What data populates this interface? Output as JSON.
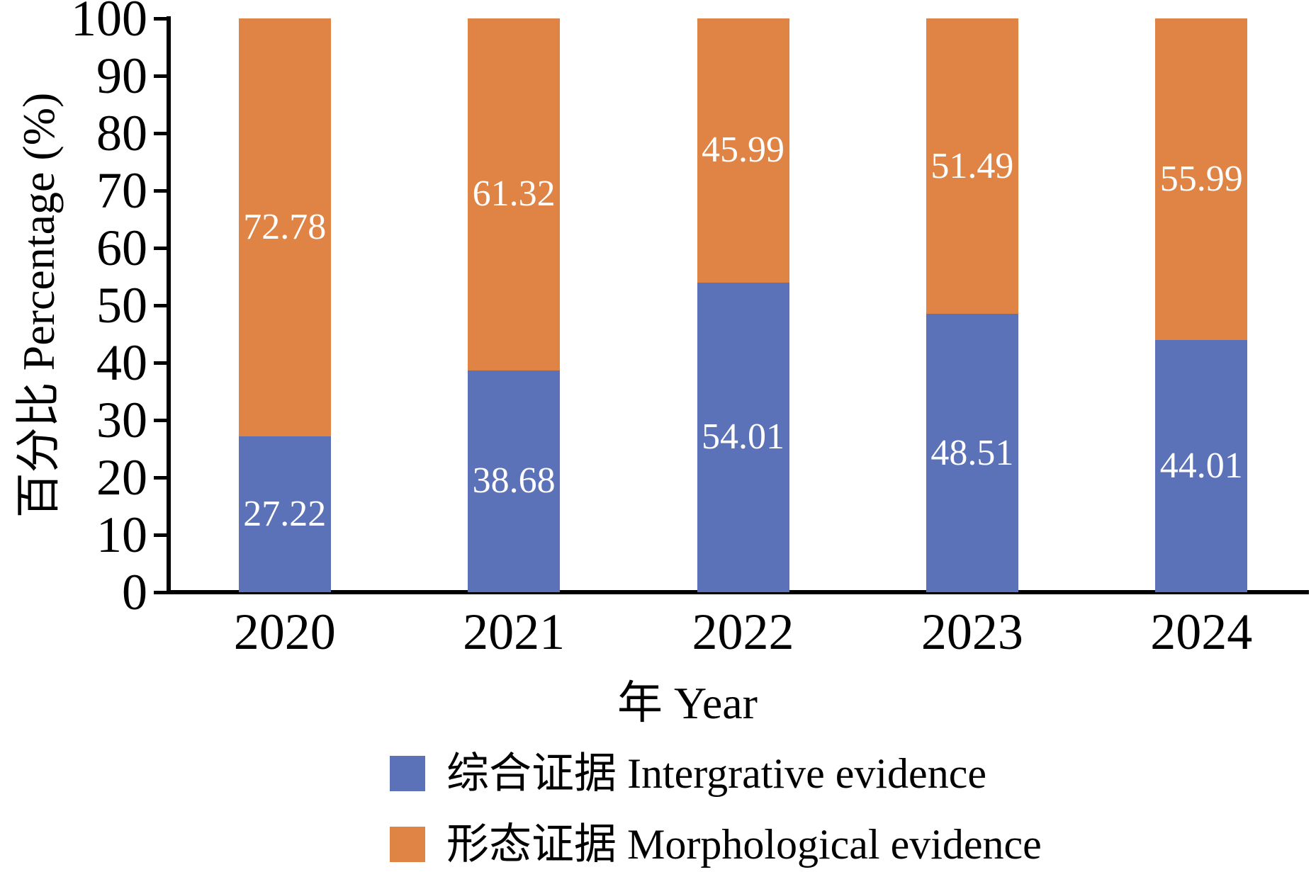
{
  "chart_data": {
    "type": "bar",
    "stacked": true,
    "orientation": "vertical",
    "categories": [
      "2020",
      "2021",
      "2022",
      "2023",
      "2024"
    ],
    "series": [
      {
        "label": "综合证据 Intergrative evidence",
        "color": "#5B71B8",
        "values": [
          27.22,
          38.68,
          54.01,
          48.51,
          44.01
        ]
      },
      {
        "label": "形态证据 Morphological evidence",
        "color": "#DF8445",
        "values": [
          72.78,
          61.32,
          45.99,
          51.49,
          55.99
        ]
      }
    ],
    "xlabel": "年 Year",
    "ylabel": "百分比 Percentage (%)",
    "ylim": [
      0,
      100
    ],
    "yticks": [
      0,
      10,
      20,
      30,
      40,
      50,
      60,
      70,
      80,
      90,
      100
    ],
    "grid": false,
    "legend_position": "bottom",
    "bar_label_color": "#ffffff",
    "axis_color": "#000000"
  }
}
